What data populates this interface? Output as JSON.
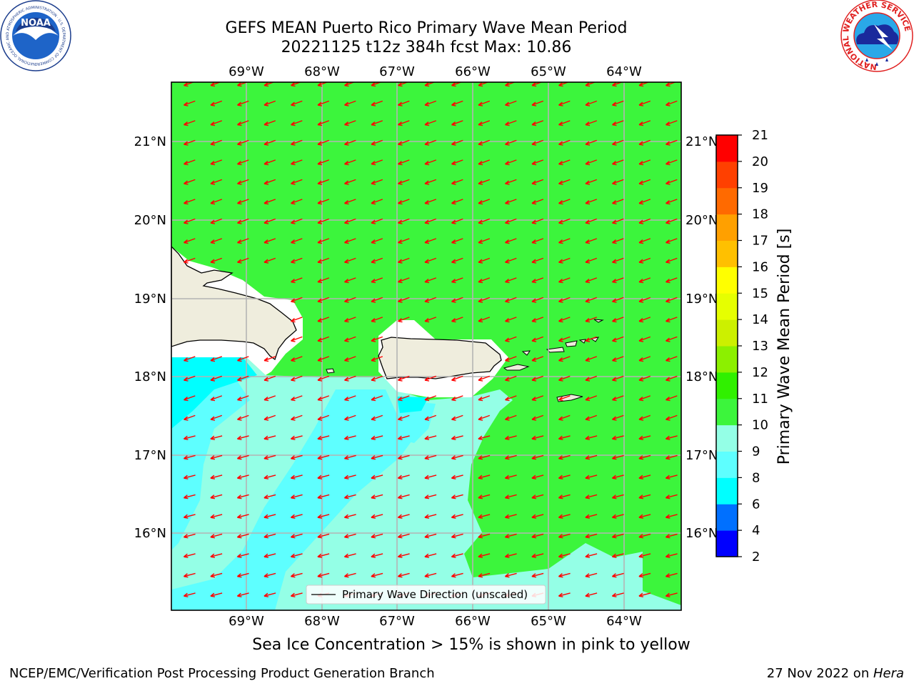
{
  "title": {
    "line1": "GEFS MEAN Puerto Rico Primary Wave Mean Period",
    "line2": "20221125 t12z 384h fcst   Max: 10.86"
  },
  "axes": {
    "lon_ticks": [
      "69°W",
      "68°W",
      "67°W",
      "66°W",
      "65°W",
      "64°W"
    ],
    "lat_ticks": [
      "21°N",
      "20°N",
      "19°N",
      "18°N",
      "17°N",
      "16°N"
    ]
  },
  "legend": {
    "label": "Primary Wave Direction (unscaled)"
  },
  "colorbar": {
    "label": "Primary Wave Mean Period [s]",
    "ticks": [
      "2",
      "4",
      "6",
      "8",
      "9",
      "10",
      "11",
      "12",
      "13",
      "14",
      "15",
      "16",
      "17",
      "18",
      "19",
      "20",
      "21"
    ],
    "colors": [
      "#0000ff",
      "#0070ff",
      "#00ffff",
      "#5effff",
      "#94ffe6",
      "#3cf53c",
      "#30f000",
      "#8cf000",
      "#ccf000",
      "#e6ff00",
      "#ffff00",
      "#ffc000",
      "#ffa000",
      "#ff6a00",
      "#ff4000",
      "#ff0000"
    ]
  },
  "caption": "Sea Ice Concentration > 15% is shown in pink to yellow",
  "footer": {
    "left": "NCEP/EMC/Verification Post Processing Product Generation Branch",
    "right_prefix": "27 Nov 2022 on ",
    "right_machine": "Hera"
  },
  "logos": {
    "noaa": "NOAA",
    "noaa_ring": "NATIONAL OCEANIC AND ATMOSPHERIC ADMINISTRATION · U.S. DEPARTMENT OF COMMERCE",
    "nws_ring": "NATIONAL WEATHER SERVICE"
  },
  "colors": {
    "arrow": "#ff0000",
    "land": "#efeddd",
    "ocean_green": "#3cf53c",
    "ocean_aqua": "#94ffe6",
    "ocean_cyan": "#5effff",
    "ocean_bright_cyan": "#00ffff"
  }
}
